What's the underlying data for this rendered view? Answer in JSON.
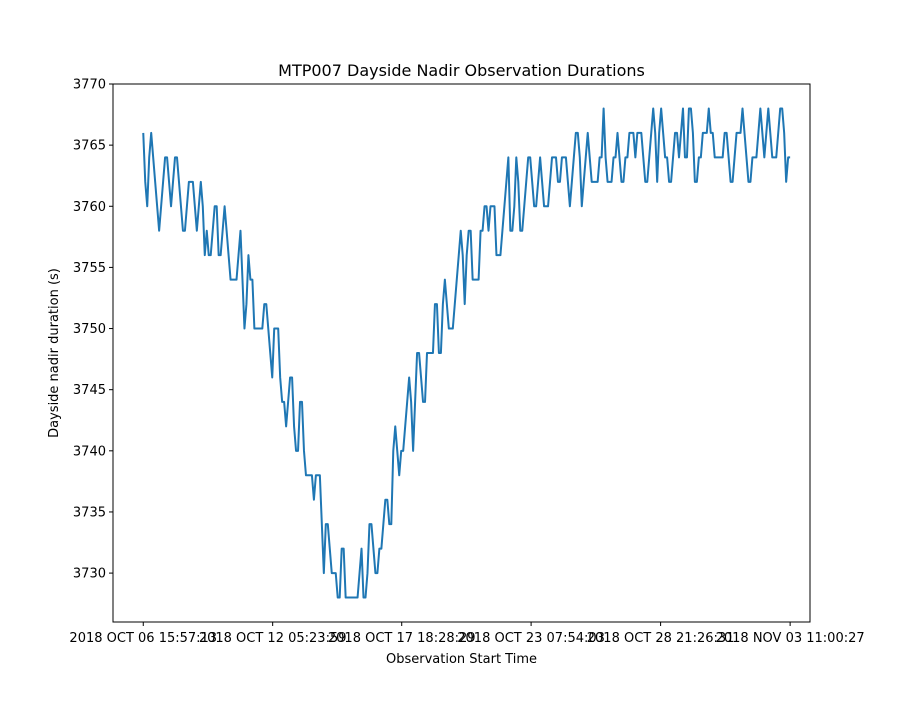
{
  "chart_data": {
    "type": "line",
    "title": "MTP007 Dayside Nadir Observation Durations",
    "xlabel": "Observation Start Time",
    "ylabel": "Dayside nadir duration (s)",
    "ylim": [
      3726,
      3770
    ],
    "y_ticks": [
      3730,
      3735,
      3740,
      3745,
      3750,
      3755,
      3760,
      3765,
      3770
    ],
    "xlim": [
      "2018 OCT 05 08:45:00",
      "2018 NOV 04 07:30:00"
    ],
    "x_ticks": [
      "2018 OCT 06 15:57:13",
      "2018 OCT 12 05:23:59",
      "2018 OCT 17 18:28:29",
      "2018 OCT 23 07:54:03",
      "2018 OCT 28 21:26:31",
      "2018 NOV 03 11:00:27"
    ],
    "grid": false,
    "legend": "none",
    "series": [
      {
        "color": "#1f77b4",
        "x_start": "2018 OCT 06 15:57:13",
        "x_end": "2018 NOV 03 11:00:27",
        "values": [
          3766,
          3762,
          3760,
          3764,
          3766,
          3764,
          3762,
          3760,
          3758,
          3760,
          3762,
          3764,
          3764,
          3762,
          3760,
          3762,
          3764,
          3764,
          3762,
          3760,
          3758,
          3758,
          3760,
          3762,
          3762,
          3762,
          3760,
          3758,
          3760,
          3762,
          3760,
          3756,
          3758,
          3756,
          3756,
          3758,
          3760,
          3760,
          3756,
          3756,
          3758,
          3760,
          3758,
          3756,
          3754,
          3754,
          3754,
          3754,
          3756,
          3758,
          3754,
          3750,
          3752,
          3756,
          3754,
          3754,
          3750,
          3750,
          3750,
          3750,
          3750,
          3752,
          3752,
          3750,
          3748,
          3746,
          3750,
          3750,
          3750,
          3746,
          3744,
          3744,
          3742,
          3744,
          3746,
          3746,
          3742,
          3740,
          3740,
          3744,
          3744,
          3740,
          3738,
          3738,
          3738,
          3738,
          3736,
          3738,
          3738,
          3738,
          3734,
          3730,
          3734,
          3734,
          3732,
          3730,
          3730,
          3730,
          3728,
          3728,
          3732,
          3732,
          3728,
          3728,
          3728,
          3728,
          3728,
          3728,
          3728,
          3730,
          3732,
          3728,
          3728,
          3730,
          3734,
          3734,
          3732,
          3730,
          3730,
          3732,
          3732,
          3734,
          3736,
          3736,
          3734,
          3734,
          3740,
          3742,
          3740,
          3738,
          3740,
          3740,
          3742,
          3744,
          3746,
          3744,
          3740,
          3744,
          3748,
          3748,
          3746,
          3744,
          3744,
          3748,
          3748,
          3748,
          3748,
          3752,
          3752,
          3748,
          3748,
          3752,
          3754,
          3752,
          3750,
          3750,
          3750,
          3752,
          3754,
          3756,
          3758,
          3756,
          3752,
          3756,
          3758,
          3758,
          3754,
          3754,
          3754,
          3754,
          3758,
          3758,
          3760,
          3760,
          3758,
          3760,
          3760,
          3760,
          3756,
          3756,
          3756,
          3758,
          3760,
          3762,
          3764,
          3758,
          3758,
          3760,
          3764,
          3762,
          3758,
          3758,
          3760,
          3762,
          3764,
          3764,
          3762,
          3760,
          3760,
          3762,
          3764,
          3762,
          3760,
          3760,
          3760,
          3762,
          3764,
          3764,
          3764,
          3762,
          3762,
          3764,
          3764,
          3764,
          3762,
          3760,
          3762,
          3764,
          3766,
          3766,
          3764,
          3760,
          3762,
          3764,
          3766,
          3764,
          3762,
          3762,
          3762,
          3762,
          3764,
          3764,
          3768,
          3764,
          3762,
          3762,
          3762,
          3764,
          3764,
          3766,
          3764,
          3762,
          3762,
          3764,
          3764,
          3766,
          3766,
          3766,
          3764,
          3766,
          3766,
          3766,
          3764,
          3762,
          3762,
          3764,
          3766,
          3768,
          3766,
          3762,
          3766,
          3768,
          3766,
          3764,
          3764,
          3762,
          3762,
          3764,
          3766,
          3766,
          3764,
          3766,
          3768,
          3764,
          3764,
          3768,
          3768,
          3766,
          3762,
          3762,
          3764,
          3764,
          3766,
          3766,
          3766,
          3768,
          3766,
          3766,
          3764,
          3764,
          3764,
          3764,
          3764,
          3766,
          3766,
          3764,
          3762,
          3762,
          3764,
          3766,
          3766,
          3766,
          3768,
          3766,
          3764,
          3762,
          3762,
          3764,
          3764,
          3764,
          3766,
          3768,
          3766,
          3764,
          3766,
          3768,
          3766,
          3764,
          3764,
          3764,
          3766,
          3768,
          3768,
          3766,
          3762,
          3764,
          3764
        ]
      }
    ]
  }
}
